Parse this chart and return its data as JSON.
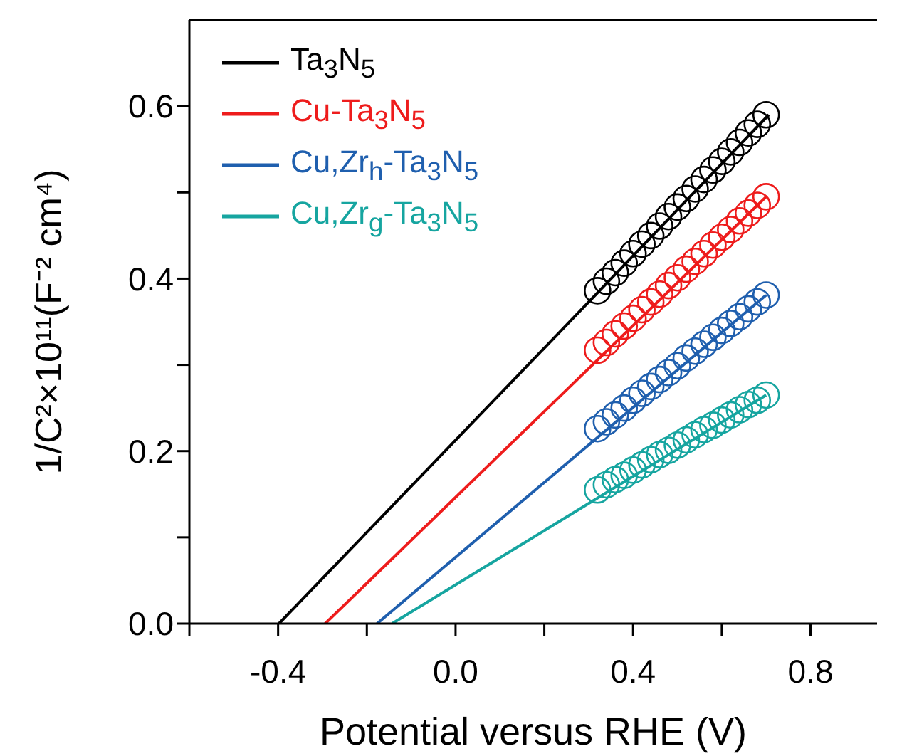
{
  "chart_data": {
    "type": "scatter",
    "xlabel": "Potential versus RHE (V)",
    "ylabel": "1/C²×10¹¹(F⁻² cm⁴)",
    "xlim": [
      -0.6,
      0.95
    ],
    "xticks": [
      {
        "value": -0.6,
        "label": null
      },
      -0.4,
      {
        "value": -0.2,
        "label": null
      },
      {
        "value": 0,
        "label": "0.0"
      },
      {
        "value": 0.2,
        "label": null
      },
      0.4,
      {
        "value": 0.6,
        "label": null
      },
      0.8
    ],
    "ylim": [
      0,
      0.7
    ],
    "yticks": [
      {
        "value": 0,
        "label": "0.0"
      },
      {
        "value": 0.1,
        "label": null
      },
      0.2,
      {
        "value": 0.3,
        "label": null
      },
      0.4,
      {
        "value": 0.5,
        "label": null
      },
      0.6
    ],
    "grid": false,
    "legend": "top left",
    "series": [
      {
        "type": "line",
        "name": "Ta$_{3}$N$_{5}$",
        "color": "#000000",
        "marker": "none",
        "x": [
          -0.398,
          0.706
        ],
        "values": [
          0,
          0.59
        ]
      },
      {
        "type": "line",
        "name": "Cu-Ta$_{3}$N$_{5}$",
        "color": "#ee1c1c",
        "marker": "none",
        "x": [
          -0.294,
          0.7
        ],
        "values": [
          0,
          0.495
        ]
      },
      {
        "type": "line",
        "name": "Cu,Zr$_{h}$-Ta$_{3}$N$_{5}$",
        "color": "#1f5fae",
        "marker": "none",
        "x": [
          -0.177,
          0.7
        ],
        "values": [
          0,
          0.381
        ]
      },
      {
        "type": "line",
        "name": "Cu,Zr$_{g}$-Ta$_{3}$N$_{5}$",
        "color": "#16a5a0",
        "marker": "none",
        "x": [
          -0.143,
          0.7
        ],
        "values": [
          0,
          0.265
        ]
      },
      {
        "type": "scatter",
        "color": "#000000",
        "marker": "circle",
        "x": [
          0.32,
          0.34,
          0.36,
          0.38,
          0.4,
          0.42,
          0.44,
          0.46,
          0.48,
          0.5,
          0.52,
          0.54,
          0.56,
          0.58,
          0.6,
          0.62,
          0.64,
          0.66,
          0.68,
          0.7
        ],
        "values": [
          0.386,
          0.397,
          0.407,
          0.418,
          0.429,
          0.44,
          0.45,
          0.461,
          0.472,
          0.483,
          0.493,
          0.504,
          0.515,
          0.526,
          0.536,
          0.547,
          0.558,
          0.569,
          0.579,
          0.59
        ]
      },
      {
        "type": "scatter",
        "color": "#ee1c1c",
        "marker": "circle",
        "x": [
          0.32,
          0.34,
          0.36,
          0.38,
          0.4,
          0.42,
          0.44,
          0.46,
          0.48,
          0.5,
          0.52,
          0.54,
          0.56,
          0.58,
          0.6,
          0.62,
          0.64,
          0.66,
          0.68,
          0.7
        ],
        "values": [
          0.317,
          0.326,
          0.336,
          0.345,
          0.354,
          0.364,
          0.373,
          0.382,
          0.392,
          0.401,
          0.411,
          0.42,
          0.429,
          0.439,
          0.448,
          0.457,
          0.467,
          0.476,
          0.485,
          0.495
        ]
      },
      {
        "type": "scatter",
        "color": "#1f5fae",
        "marker": "circle",
        "x": [
          0.32,
          0.34,
          0.36,
          0.38,
          0.4,
          0.42,
          0.44,
          0.46,
          0.48,
          0.5,
          0.52,
          0.54,
          0.56,
          0.58,
          0.6,
          0.62,
          0.64,
          0.66,
          0.68,
          0.7
        ],
        "values": [
          0.226,
          0.234,
          0.242,
          0.25,
          0.259,
          0.267,
          0.275,
          0.283,
          0.291,
          0.299,
          0.308,
          0.316,
          0.324,
          0.332,
          0.34,
          0.348,
          0.356,
          0.365,
          0.373,
          0.381
        ]
      },
      {
        "type": "scatter",
        "color": "#16a5a0",
        "marker": "circle",
        "x": [
          0.32,
          0.34,
          0.36,
          0.38,
          0.4,
          0.42,
          0.44,
          0.46,
          0.48,
          0.5,
          0.52,
          0.54,
          0.56,
          0.58,
          0.6,
          0.62,
          0.64,
          0.66,
          0.68,
          0.7
        ],
        "values": [
          0.155,
          0.161,
          0.167,
          0.172,
          0.178,
          0.184,
          0.19,
          0.196,
          0.201,
          0.207,
          0.213,
          0.219,
          0.225,
          0.23,
          0.236,
          0.242,
          0.248,
          0.254,
          0.259,
          0.265
        ]
      }
    ]
  }
}
